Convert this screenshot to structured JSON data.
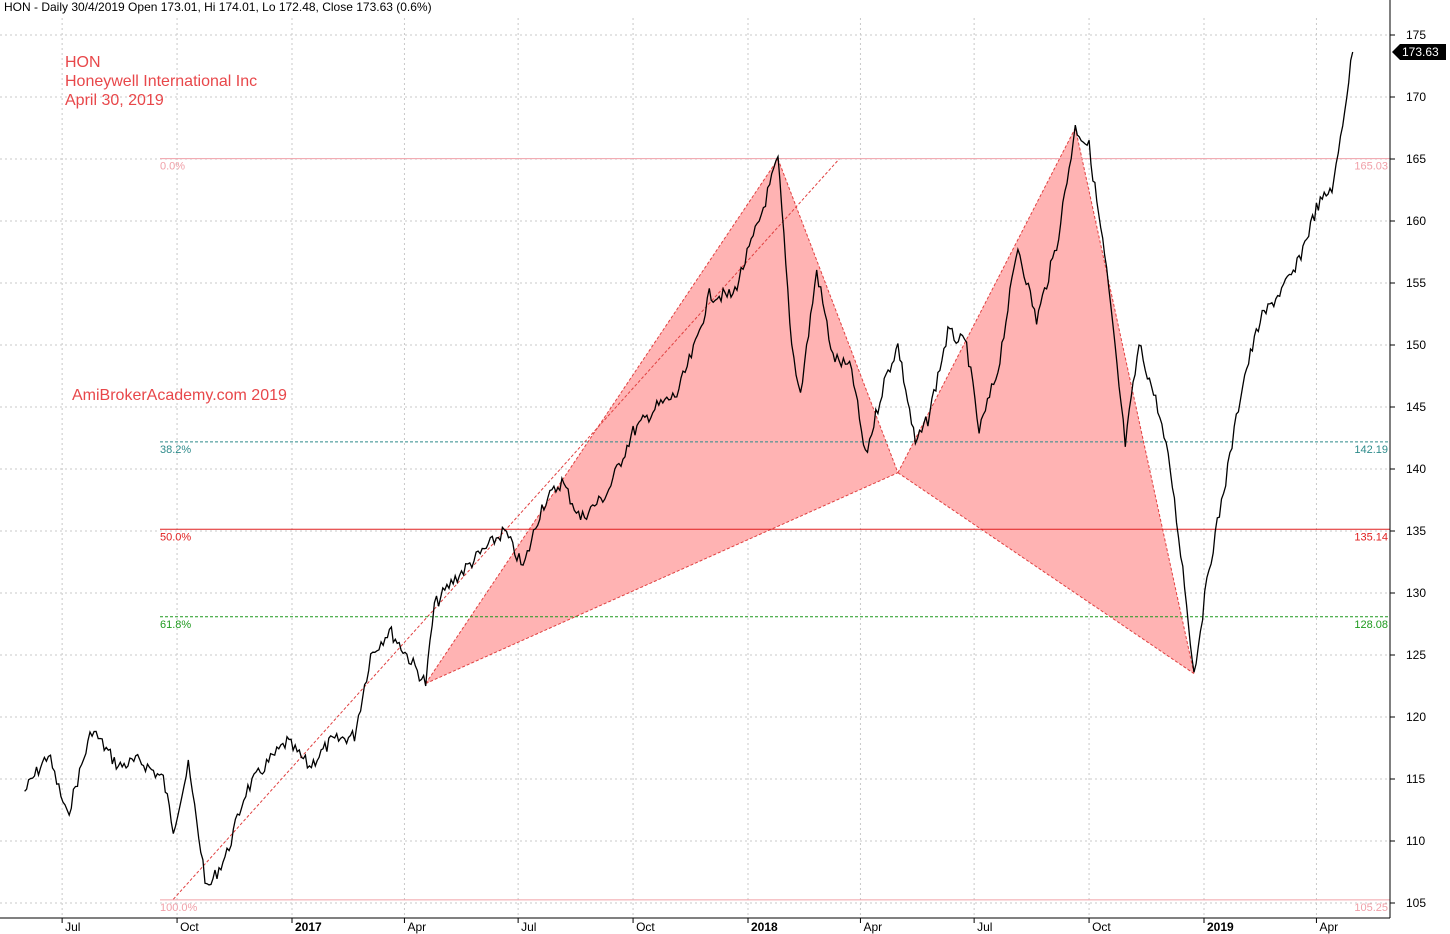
{
  "header": "HON - Daily 30/4/2019 Open 173.01, Hi 174.01, Lo 172.48, Close 173.63 (0.6%)",
  "annotations": {
    "ticker": "HON",
    "company": "Honeywell International Inc",
    "date": "April 30, 2019",
    "watermark": "AmiBrokerAcademy.com  2019"
  },
  "colors": {
    "candle": "#000000",
    "pattern_fill": "#ffb3b3",
    "pattern_line": "#e04040",
    "fib_0": "#f0a0a8",
    "fib_382": "#2e8b8b",
    "fib_50": "#e02020",
    "fib_618": "#1f9a1f",
    "fib_100": "#f0a0a8",
    "grid": "#c8c8c8"
  },
  "chart_data": {
    "type": "line",
    "title": "",
    "ylim": [
      104,
      177
    ],
    "y_ticks": [
      105,
      110,
      115,
      120,
      125,
      130,
      135,
      140,
      145,
      150,
      155,
      160,
      165,
      170,
      175
    ],
    "x_ticks": [
      "Jul",
      "Oct",
      "2017",
      "Apr",
      "Jul",
      "Oct",
      "2018",
      "Apr",
      "Jul",
      "Oct",
      "2019",
      "Apr"
    ],
    "last_price_label": "173.63",
    "fib_levels": [
      {
        "label": "0.0%",
        "value": 165.03,
        "value_label": "165.03"
      },
      {
        "label": "38.2%",
        "value": 142.19,
        "value_label": "142.19"
      },
      {
        "label": "50.0%",
        "value": 135.14,
        "value_label": "135.14"
      },
      {
        "label": "61.8%",
        "value": 128.08,
        "value_label": "128.08"
      },
      {
        "label": "100.0%",
        "value": 105.25,
        "value_label": "105.25"
      }
    ],
    "price_points": [
      {
        "x": "2016-06-01",
        "y": 114
      },
      {
        "x": "2016-06-20",
        "y": 117
      },
      {
        "x": "2016-07-05",
        "y": 112
      },
      {
        "x": "2016-07-25",
        "y": 119
      },
      {
        "x": "2016-08-15",
        "y": 116
      },
      {
        "x": "2016-09-01",
        "y": 116.5
      },
      {
        "x": "2016-09-20",
        "y": 115
      },
      {
        "x": "2016-09-28",
        "y": 111
      },
      {
        "x": "2016-10-10",
        "y": 116
      },
      {
        "x": "2016-10-25",
        "y": 106
      },
      {
        "x": "2016-11-10",
        "y": 109
      },
      {
        "x": "2016-11-25",
        "y": 114
      },
      {
        "x": "2016-12-10",
        "y": 116
      },
      {
        "x": "2016-12-28",
        "y": 118
      },
      {
        "x": "2017-01-15",
        "y": 116
      },
      {
        "x": "2017-02-01",
        "y": 118
      },
      {
        "x": "2017-02-20",
        "y": 118.5
      },
      {
        "x": "2017-03-05",
        "y": 125
      },
      {
        "x": "2017-03-20",
        "y": 127
      },
      {
        "x": "2017-04-03",
        "y": 125
      },
      {
        "x": "2017-04-18",
        "y": 122.7
      },
      {
        "x": "2017-04-25",
        "y": 129
      },
      {
        "x": "2017-05-10",
        "y": 131
      },
      {
        "x": "2017-05-30",
        "y": 133
      },
      {
        "x": "2017-06-20",
        "y": 135
      },
      {
        "x": "2017-07-05",
        "y": 132
      },
      {
        "x": "2017-07-20",
        "y": 137
      },
      {
        "x": "2017-08-05",
        "y": 139
      },
      {
        "x": "2017-08-20",
        "y": 136
      },
      {
        "x": "2017-09-10",
        "y": 138
      },
      {
        "x": "2017-10-01",
        "y": 143
      },
      {
        "x": "2017-10-20",
        "y": 145
      },
      {
        "x": "2017-11-05",
        "y": 146
      },
      {
        "x": "2017-11-20",
        "y": 150
      },
      {
        "x": "2017-12-01",
        "y": 154
      },
      {
        "x": "2017-12-20",
        "y": 154
      },
      {
        "x": "2018-01-10",
        "y": 160
      },
      {
        "x": "2018-01-25",
        "y": 165
      },
      {
        "x": "2018-02-05",
        "y": 150
      },
      {
        "x": "2018-02-12",
        "y": 146
      },
      {
        "x": "2018-02-25",
        "y": 156
      },
      {
        "x": "2018-03-10",
        "y": 149
      },
      {
        "x": "2018-03-25",
        "y": 148
      },
      {
        "x": "2018-04-05",
        "y": 141
      },
      {
        "x": "2018-04-20",
        "y": 147
      },
      {
        "x": "2018-05-01",
        "y": 150
      },
      {
        "x": "2018-05-15",
        "y": 142
      },
      {
        "x": "2018-05-25",
        "y": 144
      },
      {
        "x": "2018-06-10",
        "y": 151
      },
      {
        "x": "2018-06-25",
        "y": 150
      },
      {
        "x": "2018-07-05",
        "y": 143
      },
      {
        "x": "2018-07-20",
        "y": 148
      },
      {
        "x": "2018-08-05",
        "y": 158
      },
      {
        "x": "2018-08-20",
        "y": 152
      },
      {
        "x": "2018-09-05",
        "y": 158
      },
      {
        "x": "2018-09-20",
        "y": 167.5
      },
      {
        "x": "2018-10-01",
        "y": 166
      },
      {
        "x": "2018-10-15",
        "y": 156
      },
      {
        "x": "2018-10-30",
        "y": 142
      },
      {
        "x": "2018-11-10",
        "y": 150
      },
      {
        "x": "2018-11-25",
        "y": 145
      },
      {
        "x": "2018-12-05",
        "y": 140
      },
      {
        "x": "2018-12-15",
        "y": 132
      },
      {
        "x": "2018-12-24",
        "y": 123.5
      },
      {
        "x": "2019-01-05",
        "y": 132
      },
      {
        "x": "2019-01-20",
        "y": 140
      },
      {
        "x": "2019-02-01",
        "y": 147
      },
      {
        "x": "2019-02-15",
        "y": 152
      },
      {
        "x": "2019-03-01",
        "y": 154
      },
      {
        "x": "2019-03-15",
        "y": 156
      },
      {
        "x": "2019-04-01",
        "y": 161
      },
      {
        "x": "2019-04-15",
        "y": 163
      },
      {
        "x": "2019-04-22",
        "y": 168
      },
      {
        "x": "2019-04-30",
        "y": 173.63
      }
    ],
    "pattern_points": [
      {
        "x": "2017-04-18",
        "y": 122.7
      },
      {
        "x": "2018-01-25",
        "y": 165
      },
      {
        "x": "2018-05-01",
        "y": 139.7
      },
      {
        "x": "2018-09-20",
        "y": 167.5
      },
      {
        "x": "2018-12-24",
        "y": 123.5
      }
    ],
    "extension_line": [
      {
        "x": "2016-09-28",
        "y": 105.3
      },
      {
        "x": "2018-03-15",
        "y": 165
      }
    ]
  }
}
